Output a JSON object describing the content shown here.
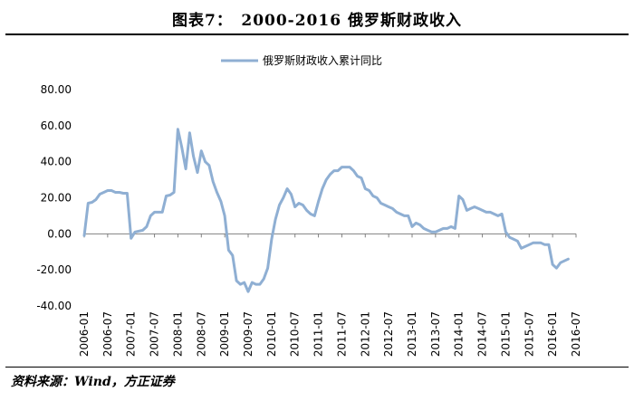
{
  "title": "图表7：　2000-2016 俄罗斯财政收入",
  "source": "资料来源：Wind，方正证券",
  "chart_data": {
    "type": "line",
    "title": "",
    "xlabel": "",
    "ylabel": "",
    "ylim": [
      -40,
      80
    ],
    "yticks": [
      "80.00",
      "60.00",
      "40.00",
      "20.00",
      "0.00",
      "-20.00",
      "-40.00"
    ],
    "xticks": [
      "2006-01",
      "2006-07",
      "2007-01",
      "2007-07",
      "2008-01",
      "2008-07",
      "2009-01",
      "2009-07",
      "2010-01",
      "2010-07",
      "2011-01",
      "2011-07",
      "2012-01",
      "2012-07",
      "2013-01",
      "2013-07",
      "2014-01",
      "2014-07",
      "2015-01",
      "2015-07",
      "2016-01",
      "2016-07"
    ],
    "grid": false,
    "legend_position": "top-center",
    "color": "#8FAFD3",
    "series": [
      {
        "name": "俄罗斯财政收入累计同比",
        "x": [
          2006.0,
          2006.083,
          2006.167,
          2006.25,
          2006.333,
          2006.417,
          2006.5,
          2006.583,
          2006.667,
          2006.75,
          2006.833,
          2006.917,
          2007.0,
          2007.083,
          2007.167,
          2007.25,
          2007.333,
          2007.417,
          2007.5,
          2007.583,
          2007.667,
          2007.75,
          2007.833,
          2007.917,
          2008.0,
          2008.083,
          2008.167,
          2008.25,
          2008.333,
          2008.417,
          2008.5,
          2008.583,
          2008.667,
          2008.75,
          2008.833,
          2008.917,
          2009.0,
          2009.083,
          2009.167,
          2009.25,
          2009.333,
          2009.417,
          2009.5,
          2009.583,
          2009.667,
          2009.75,
          2009.833,
          2009.917,
          2010.0,
          2010.083,
          2010.167,
          2010.25,
          2010.333,
          2010.417,
          2010.5,
          2010.583,
          2010.667,
          2010.75,
          2010.833,
          2010.917,
          2011.0,
          2011.083,
          2011.167,
          2011.25,
          2011.333,
          2011.417,
          2011.5,
          2011.583,
          2011.667,
          2011.75,
          2011.833,
          2011.917,
          2012.0,
          2012.083,
          2012.167,
          2012.25,
          2012.333,
          2012.417,
          2012.5,
          2012.583,
          2012.667,
          2012.75,
          2012.833,
          2012.917,
          2013.0,
          2013.083,
          2013.167,
          2013.25,
          2013.333,
          2013.417,
          2013.5,
          2013.583,
          2013.667,
          2013.75,
          2013.833,
          2013.917,
          2014.0,
          2014.083,
          2014.167,
          2014.25,
          2014.333,
          2014.417,
          2014.5,
          2014.583,
          2014.667,
          2014.75,
          2014.833,
          2014.917,
          2015.0,
          2015.083,
          2015.167,
          2015.25,
          2015.333,
          2015.417,
          2015.5,
          2015.583,
          2015.667,
          2015.75,
          2015.833,
          2015.917,
          2016.0,
          2016.083,
          2016.167,
          2016.25,
          2016.333
        ],
        "values": [
          -1,
          17,
          17.5,
          19,
          22,
          23,
          24,
          24,
          23,
          23,
          22.5,
          22.5,
          -2.5,
          1,
          1.5,
          2,
          4,
          10,
          12,
          12,
          12,
          21,
          21.5,
          23,
          58,
          48,
          36,
          56,
          43,
          34,
          46,
          40,
          38,
          29,
          23,
          18,
          10,
          -9,
          -12,
          -26,
          -28,
          -27,
          -32,
          -27,
          -28,
          -28,
          -25,
          -19,
          -3,
          8,
          16,
          20,
          25,
          22,
          15,
          17,
          16,
          13,
          11,
          10,
          18,
          25,
          30,
          33,
          35,
          35,
          37,
          37,
          37,
          35,
          32,
          31,
          25,
          24,
          21,
          20,
          17,
          16,
          15,
          14,
          12,
          11,
          10,
          10,
          4,
          6,
          5,
          3,
          2,
          1,
          1,
          2,
          3,
          3,
          4,
          3,
          21,
          19,
          13,
          14,
          15,
          14,
          13,
          12,
          12,
          11,
          10,
          11,
          1,
          -2,
          -3,
          -4,
          -8,
          -7,
          -6,
          -5,
          -5,
          -5,
          -6,
          -6,
          -17,
          -19,
          -16,
          -15,
          -14
        ]
      }
    ]
  }
}
